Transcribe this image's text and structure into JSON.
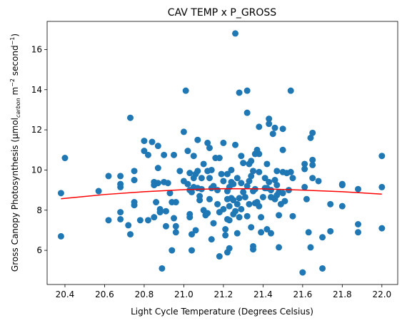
{
  "chart_data": {
    "type": "scatter",
    "title": "CAV TEMP x P_GROSS",
    "xlabel": "Light Cycle Temperature (Degrees Celsius)",
    "ylabel": "Gross Canopy Photosynthesis (μmol",
    "ylabel_sub": "carbon",
    "ylabel_post": " m",
    "ylabel_sup1": "−2",
    "ylabel_mid": " second",
    "ylabel_sup2": "−1",
    "ylabel_end": ")",
    "xlim": [
      20.31,
      22.08
    ],
    "ylim": [
      4.3,
      17.4
    ],
    "xticks": [
      "20.4",
      "20.6",
      "20.8",
      "21.0",
      "21.2",
      "21.4",
      "21.6",
      "21.8",
      "22.0"
    ],
    "yticks": [
      "6",
      "8",
      "10",
      "12",
      "14",
      "16"
    ],
    "grid": false,
    "point_color": "#1f77b4",
    "fit_color": "#ff0000",
    "fit_line": {
      "x": [
        20.38,
        20.6,
        20.8,
        21.0,
        21.2,
        21.4,
        21.6,
        21.8,
        22.0
      ],
      "y": [
        8.57,
        8.78,
        8.92,
        9.02,
        9.07,
        9.06,
        9.0,
        8.92,
        8.8
      ]
    },
    "points": [
      [
        20.38,
        8.85
      ],
      [
        20.38,
        6.7
      ],
      [
        20.4,
        10.6
      ],
      [
        20.57,
        8.95
      ],
      [
        20.62,
        9.7
      ],
      [
        20.62,
        7.5
      ],
      [
        20.68,
        9.7
      ],
      [
        20.68,
        9.3
      ],
      [
        20.68,
        9.15
      ],
      [
        20.68,
        7.9
      ],
      [
        20.68,
        7.55
      ],
      [
        20.72,
        7.25
      ],
      [
        20.73,
        12.6
      ],
      [
        20.73,
        6.8
      ],
      [
        20.75,
        9.95
      ],
      [
        20.75,
        9.5
      ],
      [
        20.75,
        8.4
      ],
      [
        20.75,
        8.25
      ],
      [
        20.78,
        7.5
      ],
      [
        20.8,
        11.45
      ],
      [
        20.8,
        10.95
      ],
      [
        20.82,
        10.75
      ],
      [
        20.82,
        7.5
      ],
      [
        20.84,
        11.4
      ],
      [
        20.85,
        9.4
      ],
      [
        20.85,
        9.25
      ],
      [
        20.85,
        7.65
      ],
      [
        20.86,
        8.4
      ],
      [
        20.87,
        11.2
      ],
      [
        20.87,
        10.1
      ],
      [
        20.87,
        9.35
      ],
      [
        20.88,
        8.05
      ],
      [
        20.88,
        7.9
      ],
      [
        20.89,
        5.1
      ],
      [
        20.9,
        10.75
      ],
      [
        20.9,
        9.4
      ],
      [
        20.91,
        7.95
      ],
      [
        20.91,
        7.2
      ],
      [
        20.92,
        9.35
      ],
      [
        20.93,
        8.85
      ],
      [
        20.94,
        8.4
      ],
      [
        20.94,
        6.0
      ],
      [
        20.95,
        10.75
      ],
      [
        20.95,
        7.6
      ],
      [
        20.96,
        8.4
      ],
      [
        20.96,
        7.2
      ],
      [
        20.96,
        6.9
      ],
      [
        20.98,
        9.95
      ],
      [
        21.0,
        11.9
      ],
      [
        21.0,
        9.45
      ],
      [
        21.01,
        13.95
      ],
      [
        21.02,
        10.95
      ],
      [
        21.02,
        9.3
      ],
      [
        21.03,
        9.85
      ],
      [
        21.03,
        9.0
      ],
      [
        21.03,
        7.8
      ],
      [
        21.03,
        7.65
      ],
      [
        21.04,
        8.9
      ],
      [
        21.04,
        6.8
      ],
      [
        21.04,
        6.0
      ],
      [
        21.05,
        10.7
      ],
      [
        21.05,
        9.6
      ],
      [
        21.05,
        9.15
      ],
      [
        21.06,
        9.8
      ],
      [
        21.06,
        7.0
      ],
      [
        21.07,
        11.5
      ],
      [
        21.07,
        9.95
      ],
      [
        21.07,
        9.1
      ],
      [
        21.08,
        8.7
      ],
      [
        21.08,
        8.5
      ],
      [
        21.09,
        9.6
      ],
      [
        21.09,
        9.05
      ],
      [
        21.1,
        10.3
      ],
      [
        21.1,
        8.0
      ],
      [
        21.11,
        7.75
      ],
      [
        21.12,
        11.35
      ],
      [
        21.12,
        9.95
      ],
      [
        21.12,
        7.85
      ],
      [
        21.13,
        11.1
      ],
      [
        21.13,
        9.6
      ],
      [
        21.13,
        8.55
      ],
      [
        21.14,
        6.55
      ],
      [
        21.14,
        10.0
      ],
      [
        21.14,
        9.1
      ],
      [
        21.15,
        9.2
      ],
      [
        21.15,
        7.35
      ],
      [
        21.16,
        10.6
      ],
      [
        21.17,
        9.0
      ],
      [
        21.17,
        8.3
      ],
      [
        21.18,
        10.6
      ],
      [
        21.18,
        7.9
      ],
      [
        21.18,
        5.7
      ],
      [
        21.19,
        9.8
      ],
      [
        21.2,
        11.35
      ],
      [
        21.2,
        9.45
      ],
      [
        21.2,
        8.05
      ],
      [
        21.21,
        7.05
      ],
      [
        21.21,
        6.75
      ],
      [
        21.22,
        9.8
      ],
      [
        21.22,
        8.95
      ],
      [
        21.22,
        8.55
      ],
      [
        21.22,
        7.55
      ],
      [
        21.22,
        5.9
      ],
      [
        21.23,
        9.15
      ],
      [
        21.23,
        8.2
      ],
      [
        21.23,
        7.5
      ],
      [
        21.23,
        6.1
      ],
      [
        21.24,
        10.0
      ],
      [
        21.24,
        9.4
      ],
      [
        21.24,
        8.6
      ],
      [
        21.25,
        9.3
      ],
      [
        21.25,
        8.5
      ],
      [
        21.25,
        7.8
      ],
      [
        21.26,
        16.8
      ],
      [
        21.26,
        11.25
      ],
      [
        21.26,
        7.95
      ],
      [
        21.27,
        9.6
      ],
      [
        21.27,
        8.3
      ],
      [
        21.27,
        6.85
      ],
      [
        21.28,
        13.85
      ],
      [
        21.28,
        8.6
      ],
      [
        21.28,
        7.65
      ],
      [
        21.29,
        10.7
      ],
      [
        21.29,
        9.35
      ],
      [
        21.29,
        8.05
      ],
      [
        21.3,
        10.35
      ],
      [
        21.3,
        8.9
      ],
      [
        21.31,
        8.65
      ],
      [
        21.32,
        13.95
      ],
      [
        21.32,
        12.85
      ],
      [
        21.32,
        9.2
      ],
      [
        21.32,
        7.7
      ],
      [
        21.33,
        10.3
      ],
      [
        21.33,
        9.45
      ],
      [
        21.33,
        8.3
      ],
      [
        21.34,
        10.45
      ],
      [
        21.34,
        9.7
      ],
      [
        21.34,
        7.15
      ],
      [
        21.35,
        9.95
      ],
      [
        21.35,
        8.95
      ],
      [
        21.35,
        6.05
      ],
      [
        21.35,
        6.2
      ],
      [
        21.36,
        10.8
      ],
      [
        21.36,
        9.05
      ],
      [
        21.36,
        8.35
      ],
      [
        21.37,
        11.0
      ],
      [
        21.37,
        8.4
      ],
      [
        21.38,
        12.15
      ],
      [
        21.38,
        10.8
      ],
      [
        21.38,
        9.9
      ],
      [
        21.38,
        8.2
      ],
      [
        21.39,
        7.65
      ],
      [
        21.39,
        6.9
      ],
      [
        21.4,
        8.65
      ],
      [
        21.41,
        9.6
      ],
      [
        21.41,
        9.1
      ],
      [
        21.42,
        10.3
      ],
      [
        21.42,
        9.1
      ],
      [
        21.42,
        7.05
      ],
      [
        21.43,
        12.55
      ],
      [
        21.43,
        12.3
      ],
      [
        21.43,
        9.4
      ],
      [
        21.44,
        9.0
      ],
      [
        21.44,
        8.65
      ],
      [
        21.44,
        6.85
      ],
      [
        21.45,
        11.8
      ],
      [
        21.46,
        12.1
      ],
      [
        21.46,
        9.5
      ],
      [
        21.46,
        8.55
      ],
      [
        21.47,
        9.95
      ],
      [
        21.47,
        9.25
      ],
      [
        21.47,
        8.75
      ],
      [
        21.48,
        7.75
      ],
      [
        21.48,
        6.15
      ],
      [
        21.48,
        8.9
      ],
      [
        21.49,
        8.3
      ],
      [
        21.5,
        12.05
      ],
      [
        21.5,
        11.0
      ],
      [
        21.5,
        9.9
      ],
      [
        21.5,
        8.85
      ],
      [
        21.51,
        8.45
      ],
      [
        21.52,
        9.85
      ],
      [
        21.53,
        9.0
      ],
      [
        21.54,
        13.95
      ],
      [
        21.54,
        9.9
      ],
      [
        21.55,
        9.6
      ],
      [
        21.55,
        7.7
      ],
      [
        21.6,
        4.9
      ],
      [
        21.61,
        10.3
      ],
      [
        21.61,
        10.05
      ],
      [
        21.61,
        9.15
      ],
      [
        21.62,
        8.55
      ],
      [
        21.63,
        6.9
      ],
      [
        21.64,
        11.6
      ],
      [
        21.64,
        6.15
      ],
      [
        21.65,
        11.85
      ],
      [
        21.65,
        10.5
      ],
      [
        21.65,
        10.25
      ],
      [
        21.65,
        9.6
      ],
      [
        21.68,
        9.45
      ],
      [
        21.7,
        6.65
      ],
      [
        21.7,
        5.1
      ],
      [
        21.74,
        8.3
      ],
      [
        21.74,
        6.95
      ],
      [
        21.8,
        9.3
      ],
      [
        21.8,
        9.25
      ],
      [
        21.8,
        8.2
      ],
      [
        21.88,
        9.05
      ],
      [
        21.88,
        7.3
      ],
      [
        21.88,
        6.9
      ],
      [
        22.0,
        10.7
      ],
      [
        22.0,
        9.15
      ],
      [
        22.0,
        7.1
      ]
    ]
  }
}
